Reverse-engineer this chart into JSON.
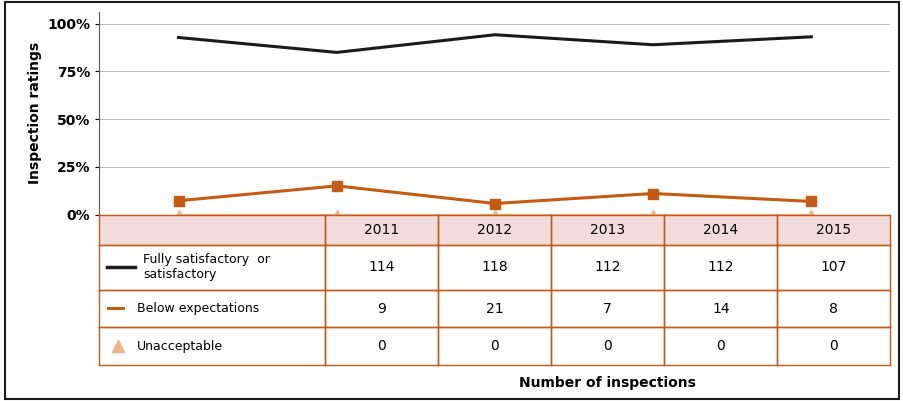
{
  "years": [
    2011,
    2012,
    2013,
    2014,
    2015
  ],
  "fully_satisfactory": [
    114,
    118,
    112,
    112,
    107
  ],
  "below_expectations": [
    9,
    21,
    7,
    14,
    8
  ],
  "unacceptable": [
    0,
    0,
    0,
    0,
    0
  ],
  "fully_satisfactory_pct": [
    92.68,
    84.89,
    94.12,
    88.89,
    93.04
  ],
  "below_expectations_pct": [
    7.32,
    15.11,
    5.88,
    11.11,
    6.96
  ],
  "unacceptable_pct": [
    0,
    0,
    0,
    0,
    0
  ],
  "black_color": "#1a1a1a",
  "orange_color": "#C55A11",
  "unacceptable_color": "#F4B183",
  "table_header_bg": "#F2DCDB",
  "table_row_bg": "#FFFFFF",
  "table_border_color": "#C55A11",
  "ylabel": "Inspection ratings",
  "xlabel": "Number of inspections",
  "yticks": [
    0,
    0.25,
    0.5,
    0.75,
    1.0
  ],
  "ytick_labels": [
    "0%",
    "25%",
    "50%",
    "75%",
    "100%"
  ],
  "legend_label_1": "Fully satisfactory  or\nsatisfactory",
  "legend_label_2": "Below expectations",
  "legend_label_3": "Unacceptable",
  "fig_bg": "#ffffff",
  "outer_border_color": "#1a1a1a"
}
